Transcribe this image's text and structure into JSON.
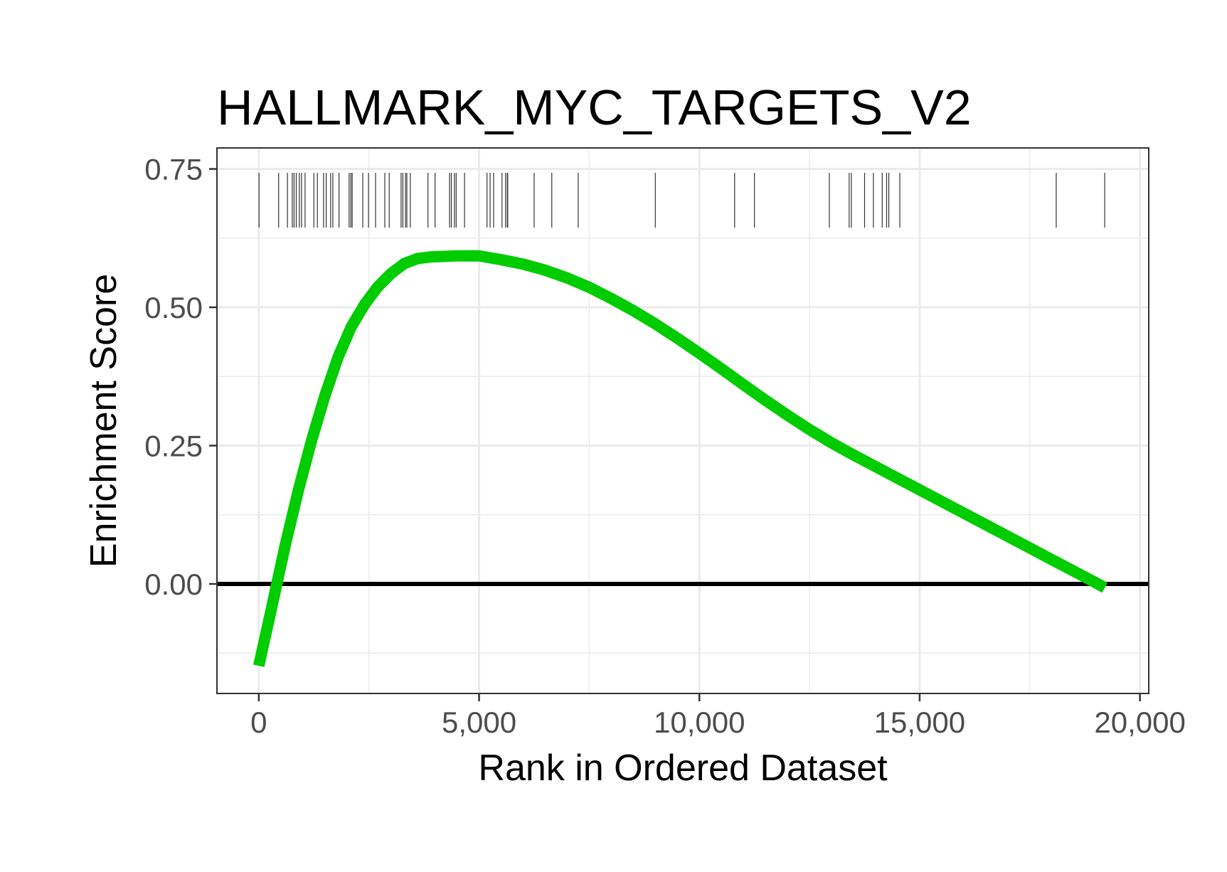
{
  "chart_data": {
    "type": "line",
    "title": "HALLMARK_MYC_TARGETS_V2",
    "xlabel": "Rank in Ordered Dataset",
    "ylabel": "Enrichment Score",
    "xlim": [
      -950,
      20200
    ],
    "ylim": [
      -0.198,
      0.788
    ],
    "x_ticks": [
      0,
      5000,
      10000,
      15000,
      20000
    ],
    "x_tick_labels": [
      "0",
      "5,000",
      "10,000",
      "15,000",
      "20,000"
    ],
    "y_ticks": [
      0.0,
      0.25,
      0.5,
      0.75
    ],
    "y_tick_labels": [
      "0.00",
      "0.25",
      "0.50",
      "0.75"
    ],
    "grid": true,
    "legend": "none",
    "hline_y": 0,
    "series": [
      {
        "color": "#00cc00",
        "x": [
          0,
          300,
          600,
          900,
          1200,
          1500,
          1800,
          2100,
          2400,
          2700,
          3000,
          3300,
          3600,
          3900,
          4200,
          4500,
          4800,
          5000,
          5500,
          6000,
          6500,
          7000,
          7500,
          8000,
          8500,
          9000,
          9500,
          10000,
          10500,
          11000,
          11500,
          12000,
          12500,
          13000,
          13500,
          14000,
          14500,
          15000,
          15500,
          16000,
          16500,
          17000,
          17500,
          18000,
          18500,
          19000,
          19200
        ],
        "y": [
          -0.148,
          -0.04,
          0.07,
          0.17,
          0.26,
          0.34,
          0.41,
          0.465,
          0.505,
          0.537,
          0.561,
          0.579,
          0.588,
          0.591,
          0.592,
          0.593,
          0.593,
          0.593,
          0.586,
          0.578,
          0.567,
          0.553,
          0.536,
          0.516,
          0.494,
          0.47,
          0.444,
          0.417,
          0.389,
          0.36,
          0.332,
          0.305,
          0.279,
          0.255,
          0.233,
          0.212,
          0.191,
          0.17,
          0.149,
          0.128,
          0.107,
          0.086,
          0.065,
          0.044,
          0.023,
          0.002,
          -0.007
        ]
      }
    ],
    "hit_ranks": [
      5,
      450,
      650,
      760,
      800,
      850,
      920,
      970,
      1050,
      1250,
      1330,
      1470,
      1530,
      1630,
      1680,
      1820,
      2050,
      2090,
      2120,
      2360,
      2490,
      2650,
      2860,
      2960,
      3230,
      3270,
      3330,
      3360,
      3440,
      3840,
      4000,
      4330,
      4370,
      4440,
      4480,
      4670,
      5180,
      5250,
      5330,
      5520,
      5600,
      5640,
      5650,
      6250,
      6650,
      7250,
      9000,
      10800,
      11250,
      12950,
      13400,
      13450,
      13750,
      13950,
      14150,
      14250,
      14300,
      14550,
      18100,
      19200
    ]
  }
}
